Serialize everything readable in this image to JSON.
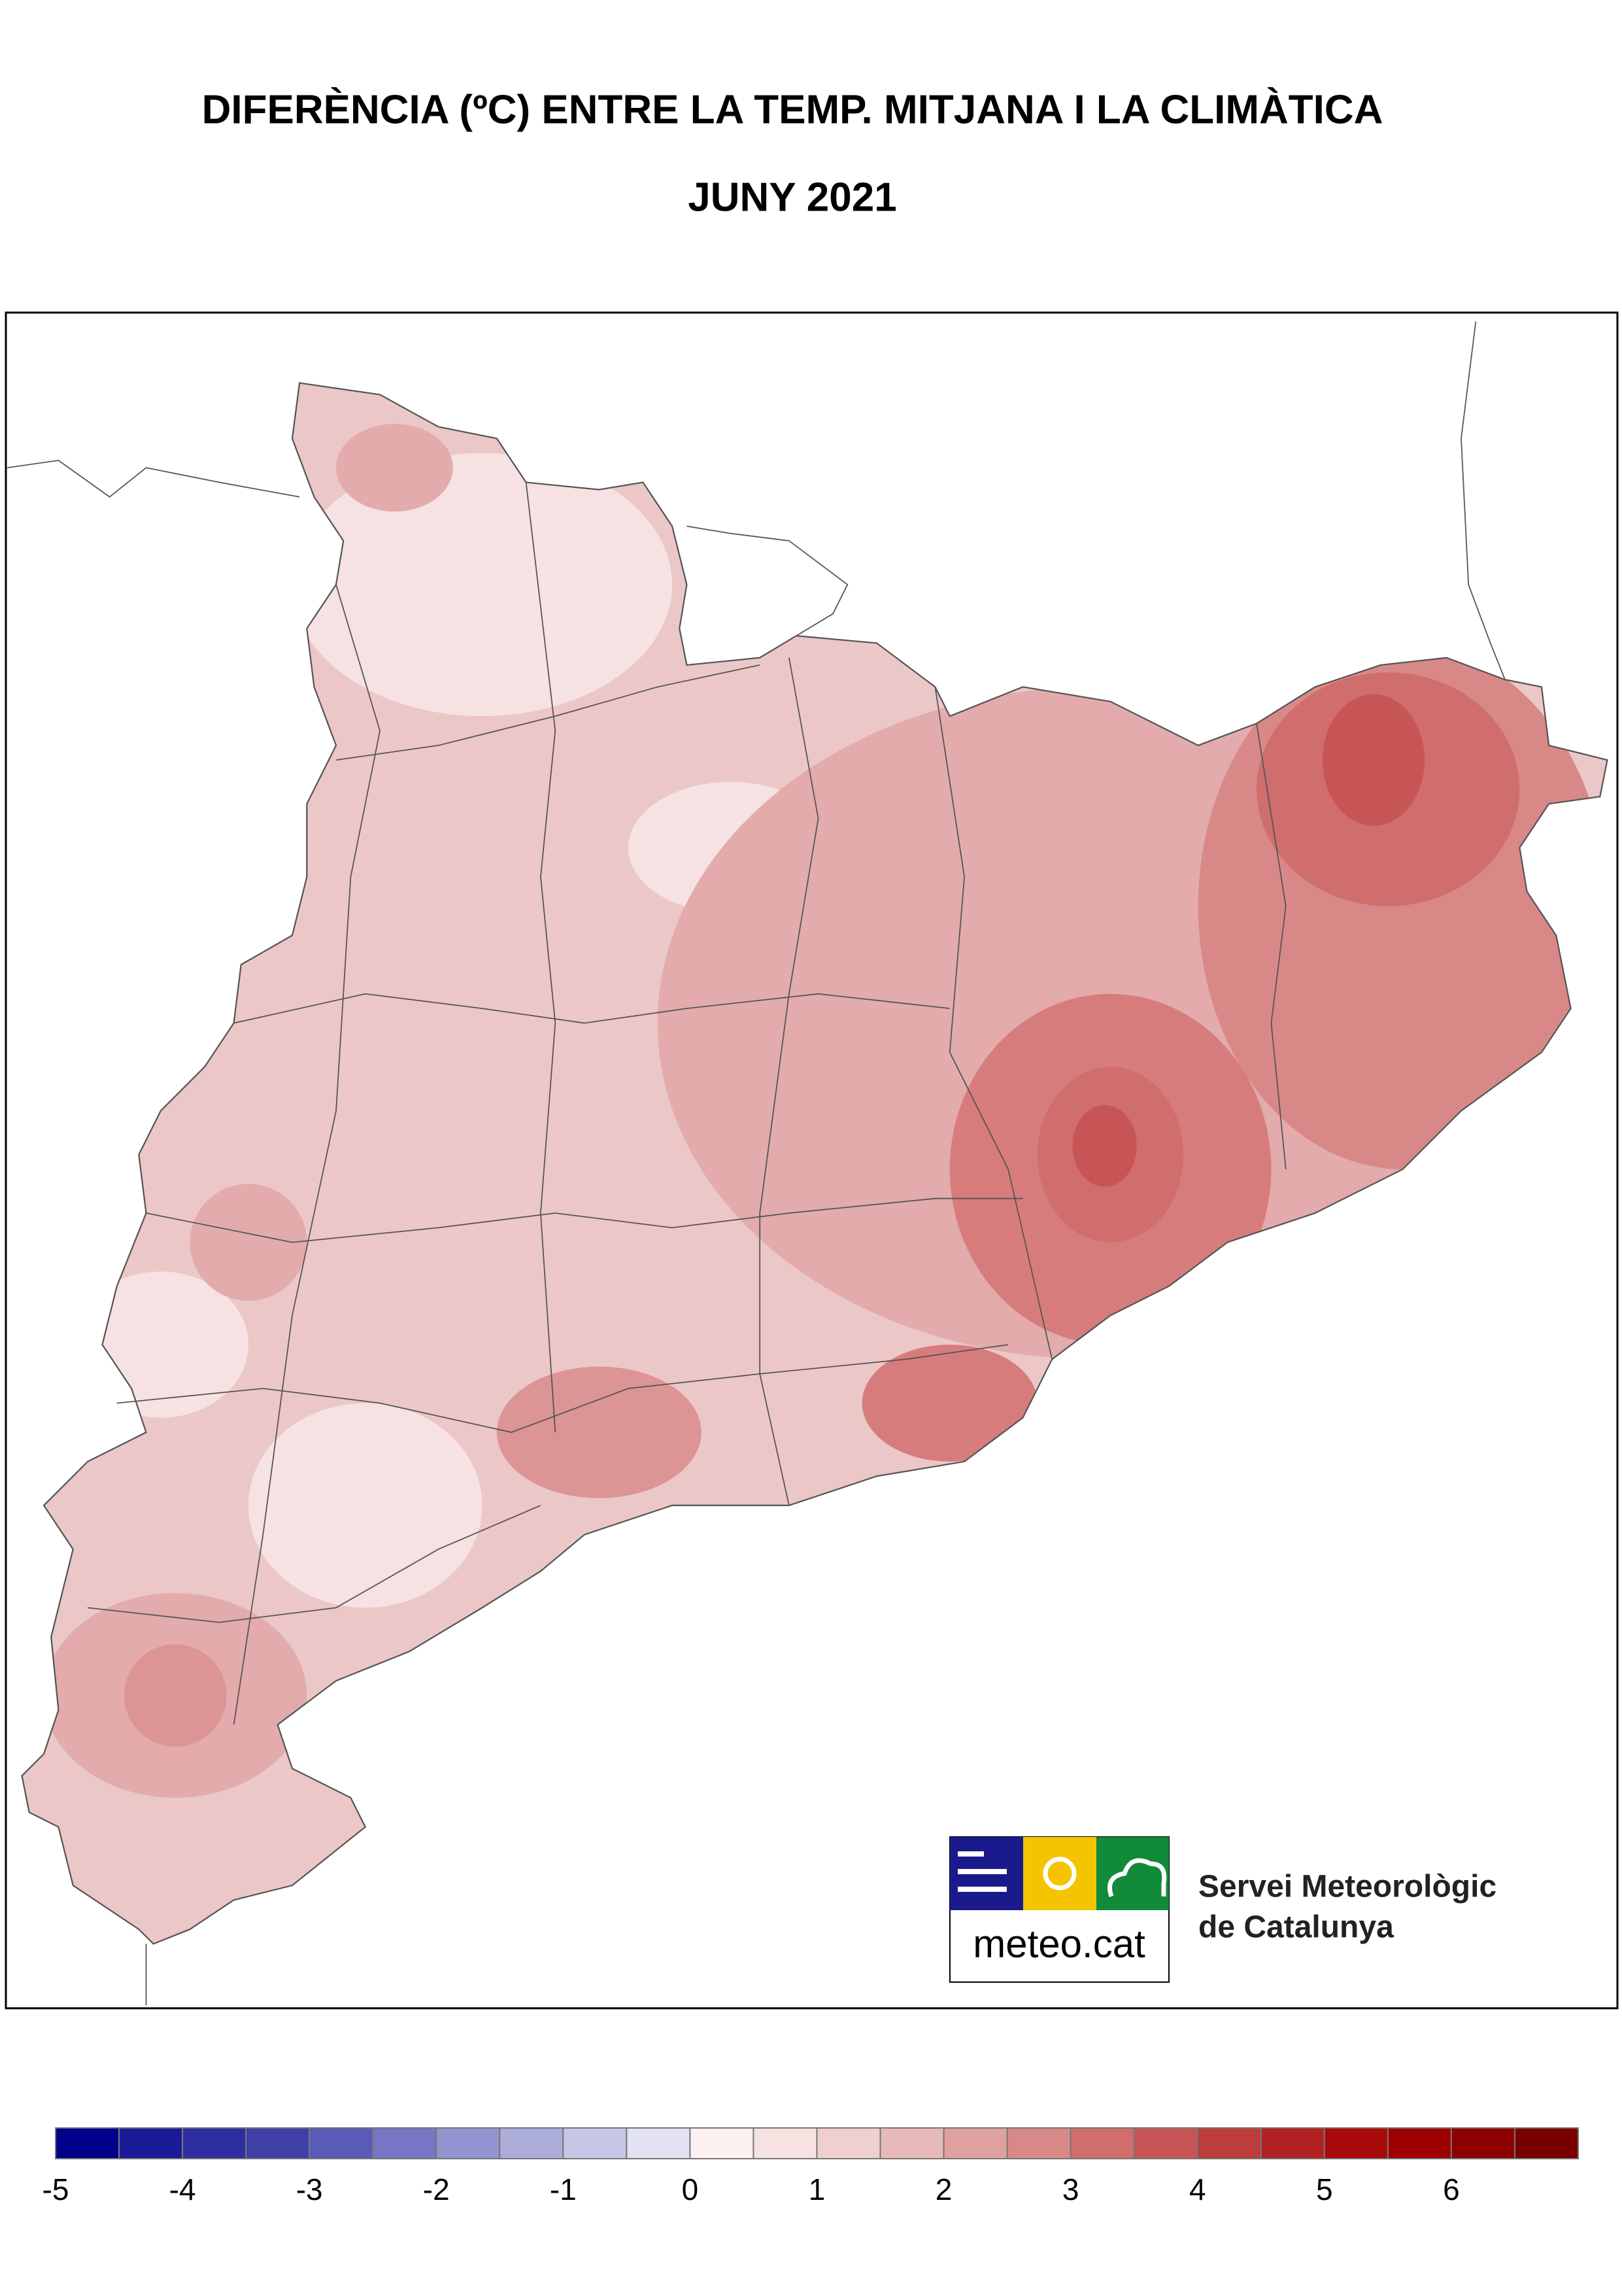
{
  "header": {
    "title": "DIFERÈNCIA (ºC) ENTRE LA TEMP. MITJANA I LA CLIMÀTICA",
    "subtitle": "JUNY 2021"
  },
  "colorbar": {
    "range": [
      -5,
      7
    ],
    "ticks": [
      -5,
      -4,
      -3,
      -2,
      -1,
      0,
      1,
      2,
      3,
      4,
      5,
      6
    ],
    "colors": [
      "#00008b",
      "#1a1a96",
      "#2e2ea0",
      "#3f3fa8",
      "#5a5ab8",
      "#7676c4",
      "#9393d0",
      "#adadda",
      "#c6c6e6",
      "#e2e2f4",
      "#fdf1f1",
      "#f7e2e2",
      "#efcfcf",
      "#e8b9b9",
      "#e0a0a0",
      "#d98888",
      "#d06e6e",
      "#c85555",
      "#bd3c3c",
      "#b32222",
      "#a80a0a",
      "#9e0000",
      "#8c0000",
      "#7a0000"
    ]
  },
  "logo": {
    "site": "meteo.cat",
    "org_line1": "Servei Meteorològic",
    "org_line2": "de Catalunya"
  }
}
